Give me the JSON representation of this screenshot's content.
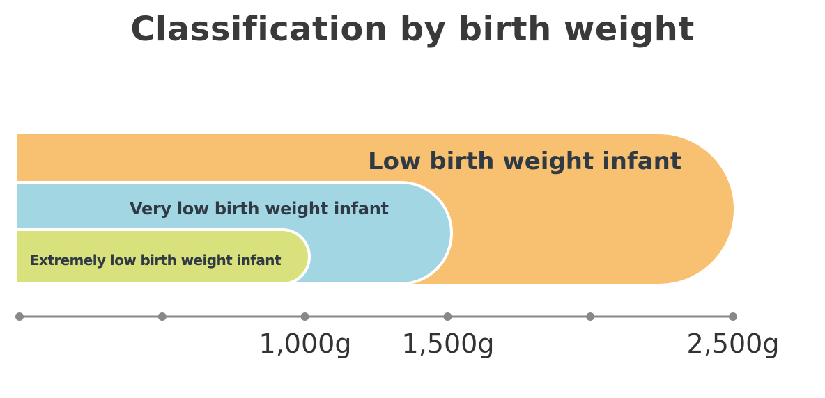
{
  "title": "Classification by birth weight",
  "colors": {
    "low": "#f8c171",
    "very_low": "#a2d6e3",
    "extremely_low": "#d8e17c",
    "axis": "#888888"
  },
  "bands": [
    {
      "id": "low",
      "label": "Low birth weight infant",
      "upper_g": 2500
    },
    {
      "id": "very_low",
      "label": "Very low birth weight infant",
      "upper_g": 1500
    },
    {
      "id": "extremely_low",
      "label": "Extremely low birth weight infant",
      "upper_g": 1000
    }
  ],
  "axis": {
    "tick_count": 6,
    "labels": [
      "1,000g",
      "1,500g",
      "2,500g"
    ]
  }
}
